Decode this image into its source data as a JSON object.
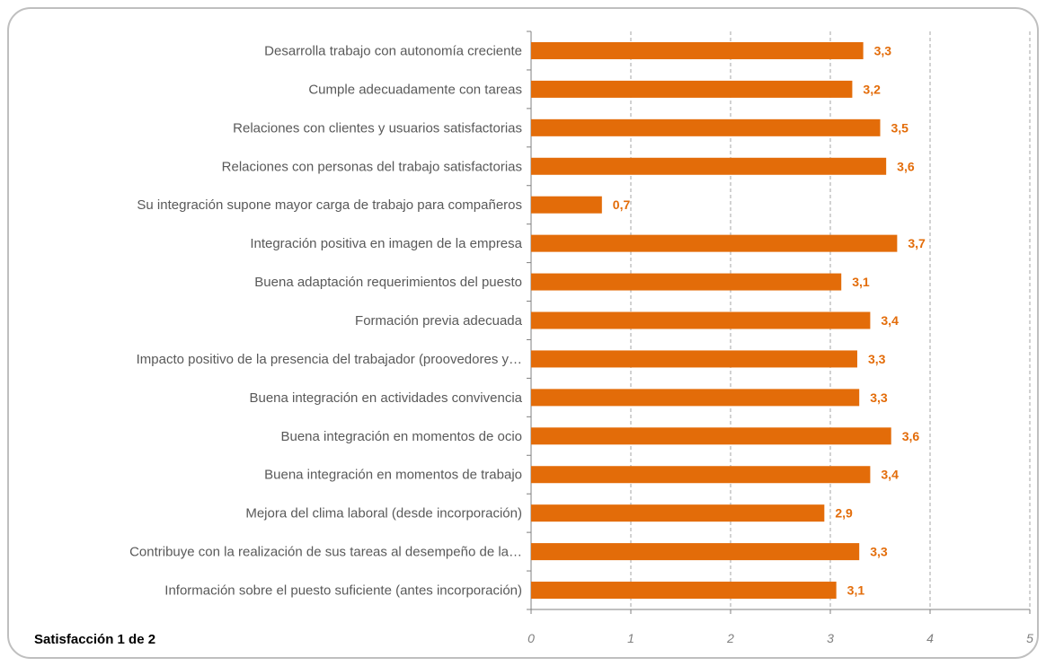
{
  "chart_data": {
    "type": "bar",
    "orientation": "horizontal",
    "title": "Satisfacción  1 de 2",
    "categories": [
      "Desarrolla trabajo con autonomía creciente",
      "Cumple adecuadamente con tareas",
      "Relaciones con clientes y usuarios satisfactorias",
      "Relaciones con personas del trabajo satisfactorias",
      "Su integración supone mayor carga de trabajo para compañeros",
      "Integración positiva en imagen de la empresa",
      "Buena adaptación requerimientos del puesto",
      "Formación previa adecuada",
      "Impacto positivo de la presencia del trabajador (proovedores y…",
      "Buena integración en actividades convivencia",
      "Buena integración en momentos de ocio",
      "Buena integración en momentos de trabajo",
      "Mejora del clima laboral (desde incorporación)",
      "Contribuye con la realización de sus tareas al desempeño de la…",
      "Información sobre el puesto suficiente (antes incorporación)"
    ],
    "values": [
      3.33,
      3.22,
      3.5,
      3.56,
      0.71,
      3.67,
      3.11,
      3.4,
      3.27,
      3.29,
      3.61,
      3.4,
      2.94,
      3.29,
      3.06
    ],
    "data_labels": [
      "3,3",
      "3,2",
      "3,5",
      "3,6",
      "0,7",
      "3,7",
      "3,1",
      "3,4",
      "3,3",
      "3,3",
      "3,6",
      "3,4",
      "2,9",
      "3,3",
      "3,1"
    ],
    "x_ticks": [
      "0",
      "1",
      "2",
      "3",
      "4",
      "5"
    ],
    "xlim": [
      0,
      5
    ],
    "grid": "vertical-dashed",
    "legend": "none",
    "colors": {
      "bar": "#E36C09",
      "data_label": "#E36C09",
      "grid": "#A6A6A6",
      "axis": "#808080"
    }
  }
}
